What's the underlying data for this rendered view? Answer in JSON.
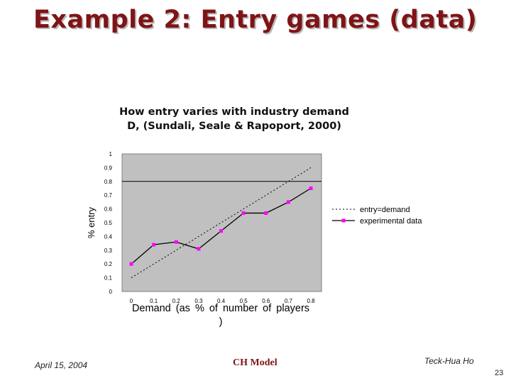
{
  "slide": {
    "title": "Example 2: Entry games (data)",
    "footer": {
      "date": "April 15, 2004",
      "center": "CH Model",
      "author": "Teck-Hua Ho",
      "page": "23"
    }
  },
  "chart_data": {
    "type": "line",
    "title": [
      "How entry varies with industry demand",
      "D, (Sundali, Seale & Rapoport, 2000)"
    ],
    "xlabel": "Demand (as % of number of players )",
    "ylabel": "% entry",
    "categories": [
      "0",
      "0.1",
      "0.2",
      "0.3",
      "0.4",
      "0.5",
      "0.6",
      "0.7",
      "0.8"
    ],
    "y_ticks": [
      "0",
      "0.1",
      "0.2",
      "0.3",
      "0.4",
      "0.5",
      "0.6",
      "0.7",
      "0.8",
      "0.9",
      "1"
    ],
    "ylim": [
      0,
      1
    ],
    "grid": "y at 0.8",
    "legend_position": "right",
    "plot_background": "#c0c0c0",
    "series": [
      {
        "name": "entry=demand",
        "style": "dotted",
        "color": "#000000",
        "x": [
          0,
          0.8
        ],
        "values": [
          0.1,
          0.9
        ]
      },
      {
        "name": "experimental data",
        "style": "solid-marker",
        "color": "#000000",
        "marker_color": "#ff00ff",
        "values": [
          0.2,
          0.34,
          0.36,
          0.31,
          0.44,
          0.57,
          0.57,
          0.65,
          0.75
        ]
      }
    ]
  }
}
